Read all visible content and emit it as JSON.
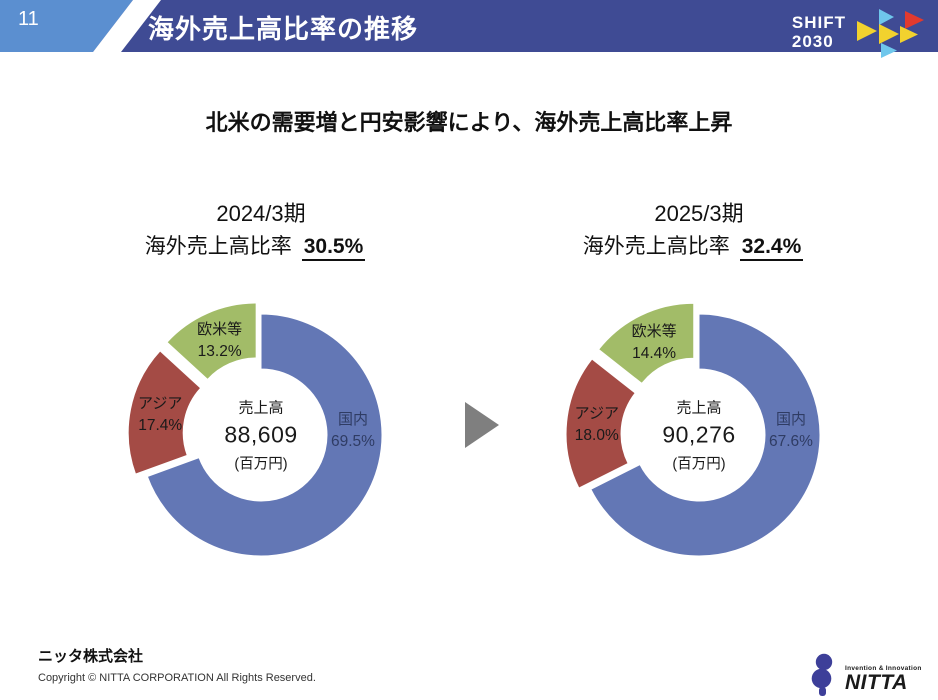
{
  "header": {
    "page_number": "11",
    "title": "海外売上高比率の推移",
    "band_color": "#3f4b94",
    "accent_color": "#5b8fd0",
    "logo_line1": "SHIFT",
    "logo_line2": "2030",
    "logo_triangles": [
      "#6fc7ec",
      "#e23a2e",
      "#f2d22e",
      "#f2d22e",
      "#f2d22e",
      "#6fc7ec"
    ]
  },
  "subtitle": "北米の需要増と円安影響により、海外売上高比率上昇",
  "arrow_color": "#7f7f7f",
  "chart_data": [
    {
      "type": "pie",
      "subtype": "donut",
      "title": "2024/3期",
      "ratio_label": "海外売上高比率",
      "ratio_value": "30.5%",
      "categories": [
        "国内",
        "アジア",
        "欧米等"
      ],
      "values": [
        69.5,
        17.4,
        13.2
      ],
      "value_labels": [
        "69.5%",
        "17.4%",
        "13.2%"
      ],
      "colors": [
        "#6377b5",
        "#a44b45",
        "#a2bc68"
      ],
      "label_colors": [
        "#2f3c64",
        "#1a1a1a",
        "#1a1a1a"
      ],
      "exploded": [
        false,
        true,
        true
      ],
      "start_angle_deg": 0,
      "direction": "clockwise",
      "center_label": "売上高",
      "center_value": "88,609",
      "center_unit": "(百万円)"
    },
    {
      "type": "pie",
      "subtype": "donut",
      "title": "2025/3期",
      "ratio_label": "海外売上高比率",
      "ratio_value": "32.4%",
      "categories": [
        "国内",
        "アジア",
        "欧米等"
      ],
      "values": [
        67.6,
        18.0,
        14.4
      ],
      "value_labels": [
        "67.6%",
        "18.0%",
        "14.4%"
      ],
      "colors": [
        "#6377b5",
        "#a44b45",
        "#a2bc68"
      ],
      "label_colors": [
        "#2f3c64",
        "#1a1a1a",
        "#1a1a1a"
      ],
      "exploded": [
        false,
        true,
        true
      ],
      "start_angle_deg": 0,
      "direction": "clockwise",
      "center_label": "売上高",
      "center_value": "90,276",
      "center_unit": "(百万円)"
    }
  ],
  "footer": {
    "company": "ニッタ株式会社",
    "copyright": "Copyright © NITTA CORPORATION All Rights Reserved.",
    "logo_tagline": "Invention & Innovation",
    "logo_name": "NITTA",
    "logo_color": "#3d3f99"
  }
}
